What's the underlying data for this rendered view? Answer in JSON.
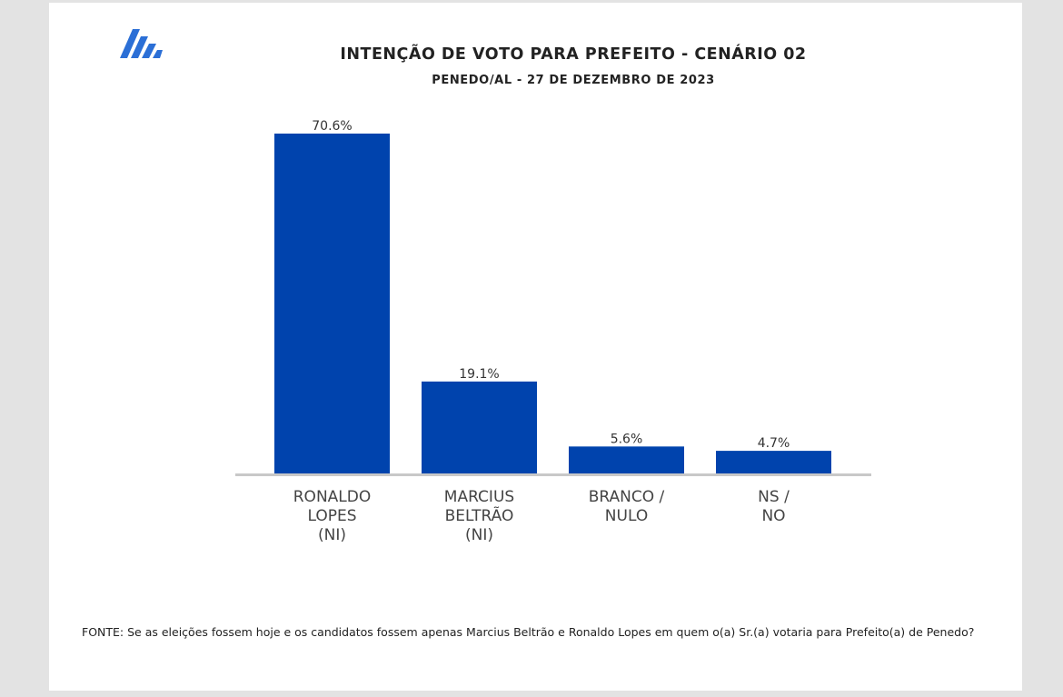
{
  "header": {
    "title": "INTENÇÃO DE VOTO PARA PREFEITO - CENÁRIO 02",
    "subtitle": "PENEDO/AL - 27 DE DEZEMBRO DE 2023"
  },
  "logo_icon": "brand-stripes-logo",
  "colors": {
    "bar": "#0043ad",
    "logo": "#2b6fd6",
    "axis": "#c8c8c8",
    "text": "#222222"
  },
  "chart_data": {
    "type": "bar",
    "categories": [
      [
        "RONALDO",
        "LOPES",
        "(NI)"
      ],
      [
        "MARCIUS",
        "BELTRÃO",
        "(NI)"
      ],
      [
        "BRANCO /",
        "NULO"
      ],
      [
        "NS /",
        "NO"
      ]
    ],
    "values": [
      70.6,
      19.1,
      5.6,
      4.7
    ],
    "value_labels": [
      "70.6%",
      "19.1%",
      "5.6%",
      "4.7%"
    ],
    "ylim": [
      0,
      70.6
    ],
    "grid": false,
    "legend": false
  },
  "footer": {
    "source": "FONTE: Se as eleições fossem hoje e os candidatos fossem apenas Marcius Beltrão e Ronaldo Lopes em quem o(a) Sr.(a) votaria para Prefeito(a) de Penedo?"
  }
}
